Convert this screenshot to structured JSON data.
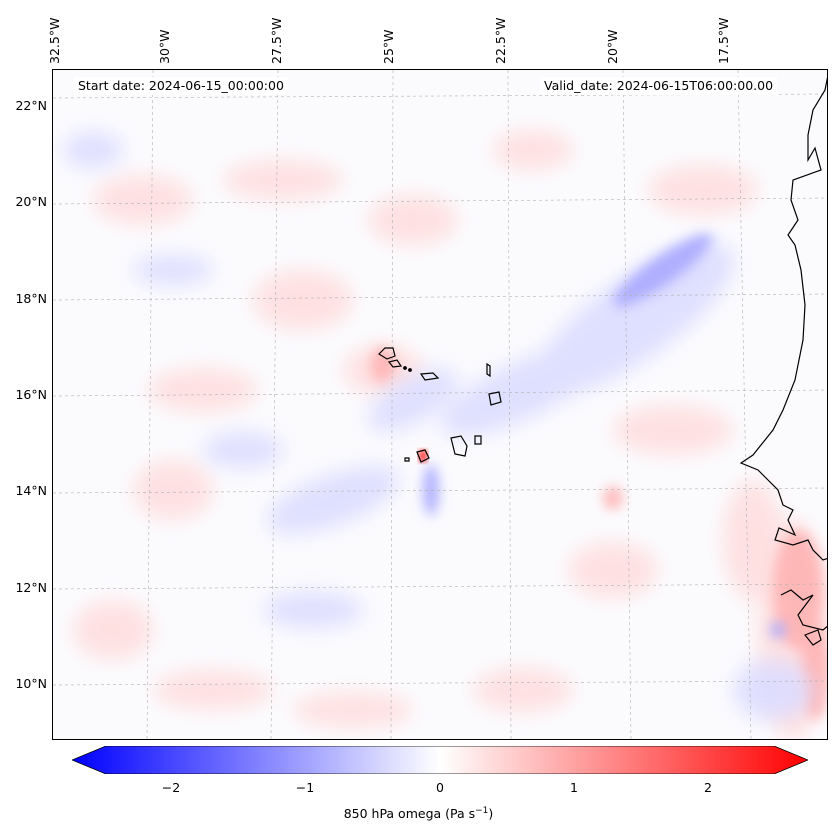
{
  "map": {
    "start_date": "Start date: 2024-06-15_00:00:00",
    "valid_date": "Valid_date: 2024-06-15T06:00:00.00",
    "lon_labels": [
      "32.5°W",
      "30°W",
      "27.5°W",
      "25°W",
      "22.5°W",
      "20°W",
      "17.5°W"
    ],
    "lat_labels": [
      "22°N",
      "20°N",
      "18°N",
      "16°N",
      "14°N",
      "12°N",
      "10°N"
    ],
    "field": "850 hPa omega"
  },
  "colorbar": {
    "label": "850 hPa omega (Pa s",
    "label_sup": "−1",
    "label_end": ")",
    "ticks": [
      "−2",
      "−1",
      "0",
      "1",
      "2"
    ],
    "tick_values": [
      -2,
      -1,
      0,
      1,
      2
    ],
    "range": [
      -2.6,
      2.6
    ],
    "cmap": "bwr",
    "low_color": "#0000ff",
    "mid_color": "#ffffff",
    "high_color": "#ff0000"
  }
}
